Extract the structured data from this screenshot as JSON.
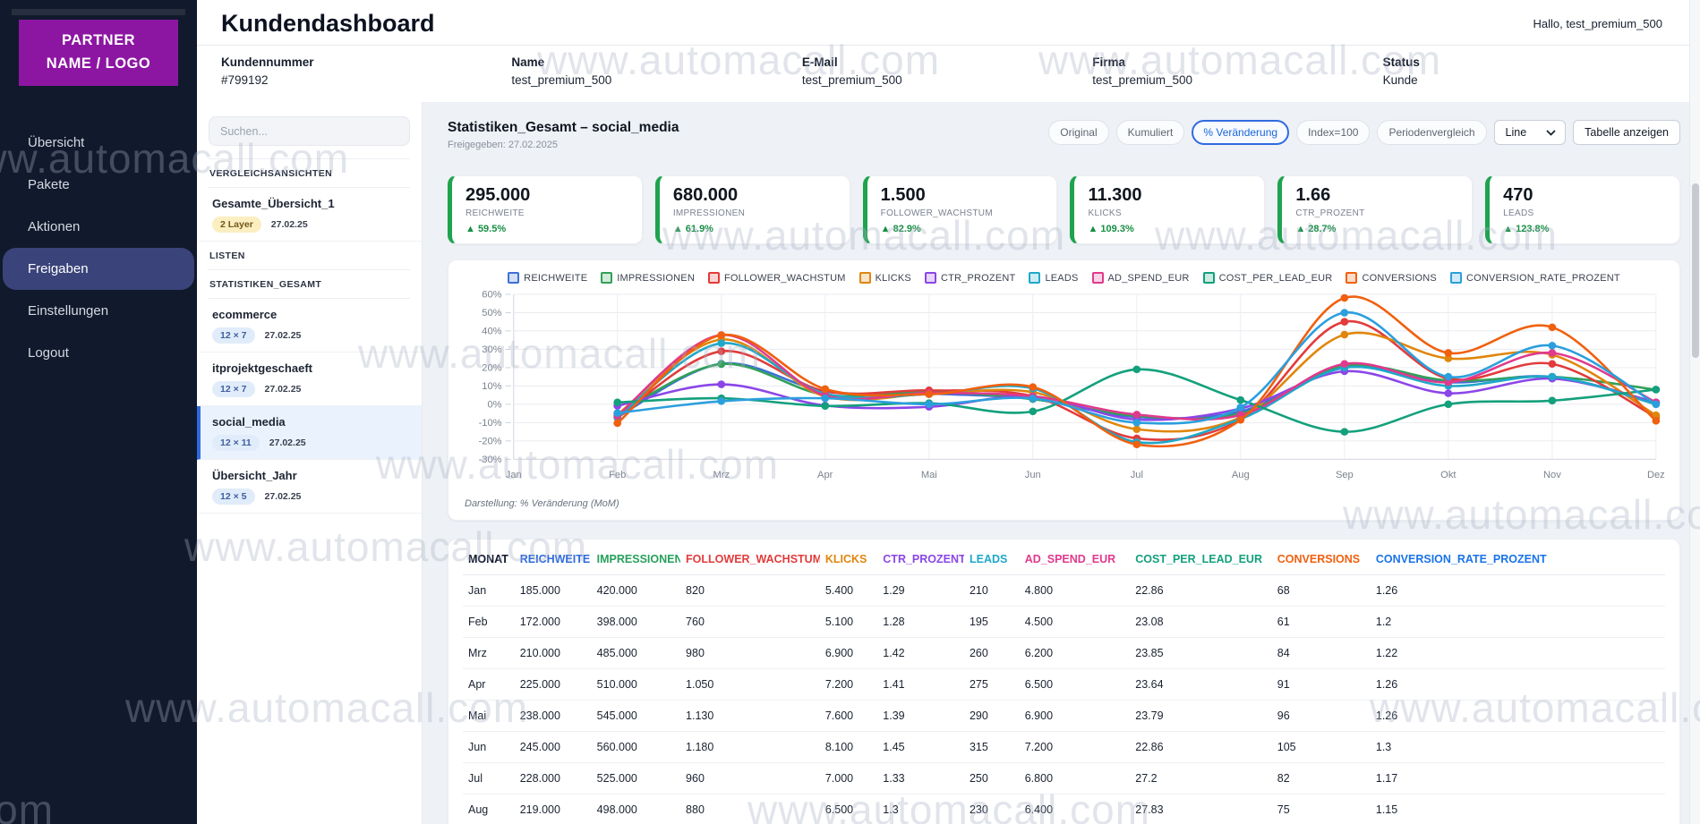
{
  "watermark_text": "www.automacall.com",
  "sidebar": {
    "logo_line1": "PARTNER",
    "logo_line2": "NAME / LOGO",
    "nav": [
      {
        "label": "Übersicht",
        "active": false
      },
      {
        "label": "Pakete",
        "active": false
      },
      {
        "label": "Aktionen",
        "active": false
      },
      {
        "label": "Freigaben",
        "active": true
      },
      {
        "label": "Einstellungen",
        "active": false
      },
      {
        "label": "Logout",
        "active": false
      }
    ]
  },
  "header": {
    "title": "Kundendashboard",
    "greeting": "Hallo, test_premium_500"
  },
  "customer_info": [
    {
      "label": "Kundennummer",
      "value": "#799192"
    },
    {
      "label": "Name",
      "value": "test_premium_500"
    },
    {
      "label": "E-Mail",
      "value": "test_premium_500"
    },
    {
      "label": "Firma",
      "value": "test_premium_500"
    },
    {
      "label": "Status",
      "value": "Kunde"
    }
  ],
  "list_panel": {
    "search_placeholder": "Suchen...",
    "sections": [
      {
        "heading": "VERGLEICHSANSICHTEN",
        "items": [
          {
            "title": "Gesamte_Übersicht_1",
            "badge": "2 Layer",
            "badge_style": "yellow",
            "date": "27.02.25",
            "selected": false
          }
        ]
      },
      {
        "heading": "LISTEN",
        "items": []
      },
      {
        "heading": "STATISTIKEN_GESAMT",
        "items": [
          {
            "title": "ecommerce",
            "badge": "12 × 7",
            "badge_style": "blue",
            "date": "27.02.25",
            "selected": false
          },
          {
            "title": "itprojektgeschaeft",
            "badge": "12 × 7",
            "badge_style": "blue",
            "date": "27.02.25",
            "selected": false
          },
          {
            "title": "social_media",
            "badge": "12 × 11",
            "badge_style": "blue",
            "date": "27.02.25",
            "selected": true
          },
          {
            "title": "Übersicht_Jahr",
            "badge": "12 × 5",
            "badge_style": "blue",
            "date": "27.02.25",
            "selected": false
          }
        ]
      }
    ]
  },
  "main": {
    "view_header": {
      "title": "Statistiken_Gesamt – social_media",
      "subtitle": "Freigegeben: 27.02.2025"
    },
    "toolbar": {
      "buttons": [
        {
          "label": "Original",
          "active": false
        },
        {
          "label": "Kumuliert",
          "active": false
        },
        {
          "label": "% Veränderung",
          "active": true
        },
        {
          "label": "Index=100",
          "active": false
        },
        {
          "label": "Periodenvergleich",
          "active": false
        }
      ],
      "chart_type_select": {
        "value": "Line"
      },
      "table_button": "Tabelle anzeigen"
    },
    "kpis": [
      {
        "value": "295.000",
        "label": "REICHWEITE",
        "delta": "▲ 59.5%"
      },
      {
        "value": "680.000",
        "label": "IMPRESSIONEN",
        "delta": "▲ 61.9%"
      },
      {
        "value": "1.500",
        "label": "FOLLOWER_WACHSTUM",
        "delta": "▲ 82.9%"
      },
      {
        "value": "11.300",
        "label": "KLICKS",
        "delta": "▲ 109.3%"
      },
      {
        "value": "1.66",
        "label": "CTR_PROZENT",
        "delta": "▲ 28.7%"
      },
      {
        "value": "470",
        "label": "LEADS",
        "delta": "▲ 123.8%"
      }
    ],
    "chart_caption": "Darstellung: % Veränderung (MoM)",
    "accent_colors": {
      "primary_blue": "#2f6bdf",
      "kpi_green": "#1ea34f",
      "logo_purple": "#8c16a2"
    }
  },
  "chart_data": {
    "type": "line",
    "title": "",
    "x": [
      "Jan",
      "Feb",
      "Mrz",
      "Apr",
      "Mai",
      "Jun",
      "Jul",
      "Aug",
      "Sep",
      "Okt",
      "Nov",
      "Dez"
    ],
    "ylim": [
      -30,
      60
    ],
    "ytick_step": 10,
    "ytick_suffix": "%",
    "grid": true,
    "legend_position": "top",
    "series": [
      {
        "name": "REICHWEITE",
        "color": "#3d6fd8",
        "values": [
          null,
          -7.0,
          22.1,
          7.1,
          5.8,
          2.9,
          -6.9,
          -3.9,
          20,
          12,
          15,
          1
        ]
      },
      {
        "name": "IMPRESSIONEN",
        "color": "#31a158",
        "values": [
          null,
          -5.2,
          21.9,
          5.2,
          6.9,
          2.8,
          -6.3,
          -5.1,
          21,
          13,
          15,
          8
        ]
      },
      {
        "name": "FOLLOWER_WACHSTUM",
        "color": "#e23b3b",
        "values": [
          null,
          -7.3,
          28.9,
          7.1,
          7.6,
          4.4,
          -18.6,
          -8.3,
          45,
          14,
          22,
          -7
        ]
      },
      {
        "name": "KLICKS",
        "color": "#e0860c",
        "values": [
          null,
          -5.6,
          35.3,
          4.3,
          5.6,
          6.6,
          -13.6,
          -7.1,
          38,
          25,
          27,
          -6
        ]
      },
      {
        "name": "CTR_PROZENT",
        "color": "#8b46e8",
        "values": [
          null,
          -0.8,
          10.9,
          -0.7,
          -1.4,
          4.3,
          -8.3,
          -2.3,
          18,
          6,
          14,
          1
        ]
      },
      {
        "name": "LEADS",
        "color": "#1fa8c9",
        "values": [
          null,
          -7.1,
          33.3,
          5.8,
          5.5,
          8.6,
          -20.6,
          -8.0,
          20,
          10,
          15,
          0
        ]
      },
      {
        "name": "AD_SPEND_EUR",
        "color": "#e03a8c",
        "values": [
          null,
          -6.3,
          37.8,
          4.8,
          6.2,
          4.3,
          -5.6,
          -5.9,
          22,
          12,
          28,
          1
        ]
      },
      {
        "name": "COST_PER_LEAD_EUR",
        "color": "#13a07c",
        "values": [
          null,
          1.0,
          3.3,
          -0.9,
          0.6,
          -3.9,
          19.0,
          2.3,
          -15,
          0,
          2,
          8
        ]
      },
      {
        "name": "CONVERSIONS",
        "color": "#f0600f",
        "values": [
          null,
          -10.3,
          37.7,
          8.3,
          5.5,
          9.4,
          -21.9,
          -8.5,
          58,
          28,
          42,
          -9
        ]
      },
      {
        "name": "CONVERSION_RATE_PROZENT",
        "color": "#2b9fdd",
        "values": [
          null,
          -4.8,
          1.7,
          3.3,
          0.0,
          3.2,
          -10.0,
          -1.7,
          50,
          15,
          32,
          0
        ]
      }
    ]
  },
  "table": {
    "columns": [
      {
        "label": "MONAT",
        "color": "#0f172a"
      },
      {
        "label": "REICHWEITE",
        "color": "#2f6bdf"
      },
      {
        "label": "IMPRESSIONEN",
        "color": "#27a05c"
      },
      {
        "label": "FOLLOWER_WACHSTUM",
        "color": "#e23b3b"
      },
      {
        "label": "KLICKS",
        "color": "#e0860c"
      },
      {
        "label": "CTR_PROZENT",
        "color": "#8b46e8"
      },
      {
        "label": "LEADS",
        "color": "#1fa8c9"
      },
      {
        "label": "AD_SPEND_EUR",
        "color": "#e03a8c"
      },
      {
        "label": "COST_PER_LEAD_EUR",
        "color": "#13a07c"
      },
      {
        "label": "CONVERSIONS",
        "color": "#f0600f"
      },
      {
        "label": "CONVERSION_RATE_PROZENT",
        "color": "#1a73e8"
      }
    ],
    "rows": [
      [
        "Jan",
        "185.000",
        "420.000",
        "820",
        "5.400",
        "1.29",
        "210",
        "4.800",
        "22.86",
        "68",
        "1.26"
      ],
      [
        "Feb",
        "172.000",
        "398.000",
        "760",
        "5.100",
        "1.28",
        "195",
        "4.500",
        "23.08",
        "61",
        "1.2"
      ],
      [
        "Mrz",
        "210.000",
        "485.000",
        "980",
        "6.900",
        "1.42",
        "260",
        "6.200",
        "23.85",
        "84",
        "1.22"
      ],
      [
        "Apr",
        "225.000",
        "510.000",
        "1.050",
        "7.200",
        "1.41",
        "275",
        "6.500",
        "23.64",
        "91",
        "1.26"
      ],
      [
        "Mai",
        "238.000",
        "545.000",
        "1.130",
        "7.600",
        "1.39",
        "290",
        "6.900",
        "23.79",
        "96",
        "1.26"
      ],
      [
        "Jun",
        "245.000",
        "560.000",
        "1.180",
        "8.100",
        "1.45",
        "315",
        "7.200",
        "22.86",
        "105",
        "1.3"
      ],
      [
        "Jul",
        "228.000",
        "525.000",
        "960",
        "7.000",
        "1.33",
        "250",
        "6.800",
        "27.2",
        "82",
        "1.17"
      ],
      [
        "Aug",
        "219.000",
        "498.000",
        "880",
        "6.500",
        "1.3",
        "230",
        "6.400",
        "27.83",
        "75",
        "1.15"
      ]
    ]
  }
}
